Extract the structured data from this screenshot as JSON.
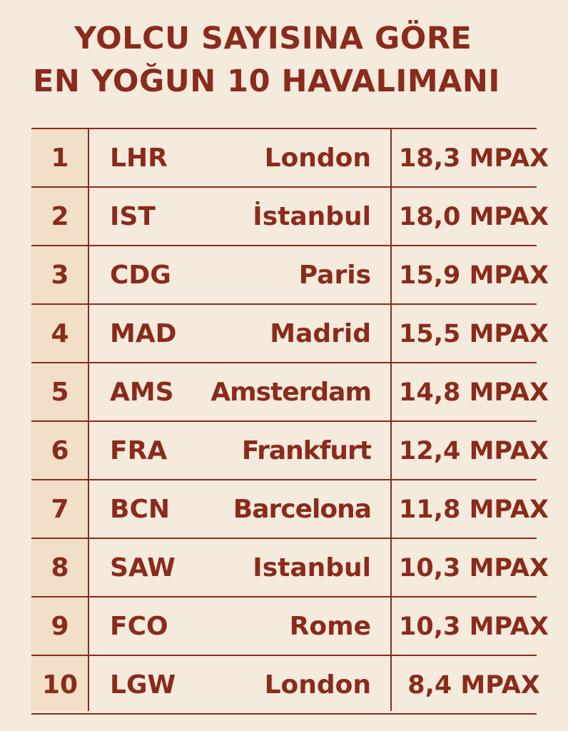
{
  "title": {
    "line1": "YOLCU SAYISINA GÖRE",
    "line2": "EN YOĞUN 10 HAVALIMANI"
  },
  "colors": {
    "background": "#f5ebdd",
    "rank_column": "#f2dfc8",
    "text": "#8a2b1c"
  },
  "chart_data": {
    "type": "table",
    "title": "YOLCU SAYISINA GÖRE EN YOĞUN 10 HAVALIMANI",
    "rows": [
      {
        "rank": "1",
        "code": "LHR",
        "city": "London",
        "value": "18,3 MPAX"
      },
      {
        "rank": "2",
        "code": "IST",
        "city": "İstanbul",
        "value": "18,0 MPAX"
      },
      {
        "rank": "3",
        "code": "CDG",
        "city": "Paris",
        "value": "15,9 MPAX"
      },
      {
        "rank": "4",
        "code": "MAD",
        "city": "Madrid",
        "value": "15,5 MPAX"
      },
      {
        "rank": "5",
        "code": "AMS",
        "city": "Amsterdam",
        "value": "14,8 MPAX"
      },
      {
        "rank": "6",
        "code": "FRA",
        "city": "Frankfurt",
        "value": "12,4 MPAX"
      },
      {
        "rank": "7",
        "code": "BCN",
        "city": "Barcelona",
        "value": "11,8 MPAX"
      },
      {
        "rank": "8",
        "code": "SAW",
        "city": "Istanbul",
        "value": "10,3 MPAX"
      },
      {
        "rank": "9",
        "code": "FCO",
        "city": "Rome",
        "value": "10,3 MPAX"
      },
      {
        "rank": "10",
        "code": "LGW",
        "city": "London",
        "value": "8,4 MPAX"
      }
    ],
    "values": [
      18.3,
      18.0,
      15.9,
      15.5,
      14.8,
      12.4,
      11.8,
      10.3,
      10.3,
      8.4
    ]
  }
}
